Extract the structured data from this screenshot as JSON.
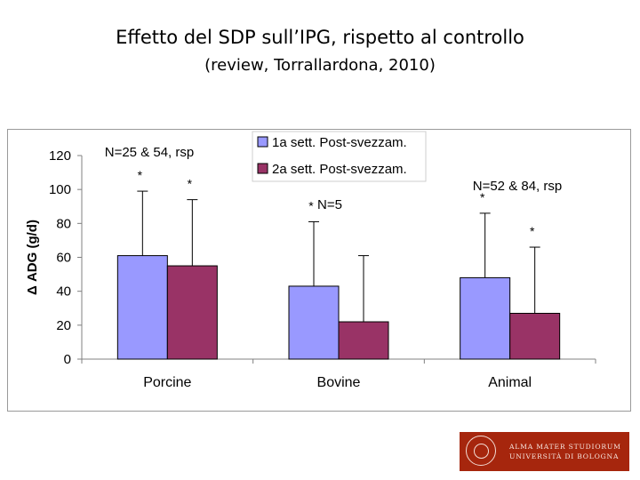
{
  "slide": {
    "title": "Effetto del SDP sull’IPG, rispetto al controllo",
    "subtitle": "(review, Torrallardona, 2010)"
  },
  "logo": {
    "line1": "ALMA MATER STUDIORUM",
    "line2": "UNIVERSITÀ DI BOLOGNA"
  },
  "chart_data": {
    "type": "bar",
    "title": "",
    "xlabel": "",
    "ylabel": "Δ ADG (g/d)",
    "ylim": [
      0,
      120
    ],
    "yticks": [
      0,
      20,
      40,
      60,
      80,
      100,
      120
    ],
    "categories": [
      "Porcine",
      "Bovine",
      "Animal"
    ],
    "series": [
      {
        "name": "1a sett. Post-svezzam.",
        "color": "#9999ff",
        "values": [
          61,
          43,
          48
        ],
        "error_upper": [
          99,
          81,
          86
        ],
        "significance": [
          "*",
          "*",
          "*"
        ]
      },
      {
        "name": "2a sett. Post-svezzam.",
        "color": "#993366",
        "values": [
          55,
          22,
          27
        ],
        "error_upper": [
          94,
          61,
          66
        ],
        "significance": [
          "*",
          "",
          "*"
        ]
      }
    ],
    "group_annotations": [
      "N=25 & 54, rsp",
      "N=5",
      "N=52 & 84, rsp"
    ],
    "legend_position": "top-center"
  }
}
